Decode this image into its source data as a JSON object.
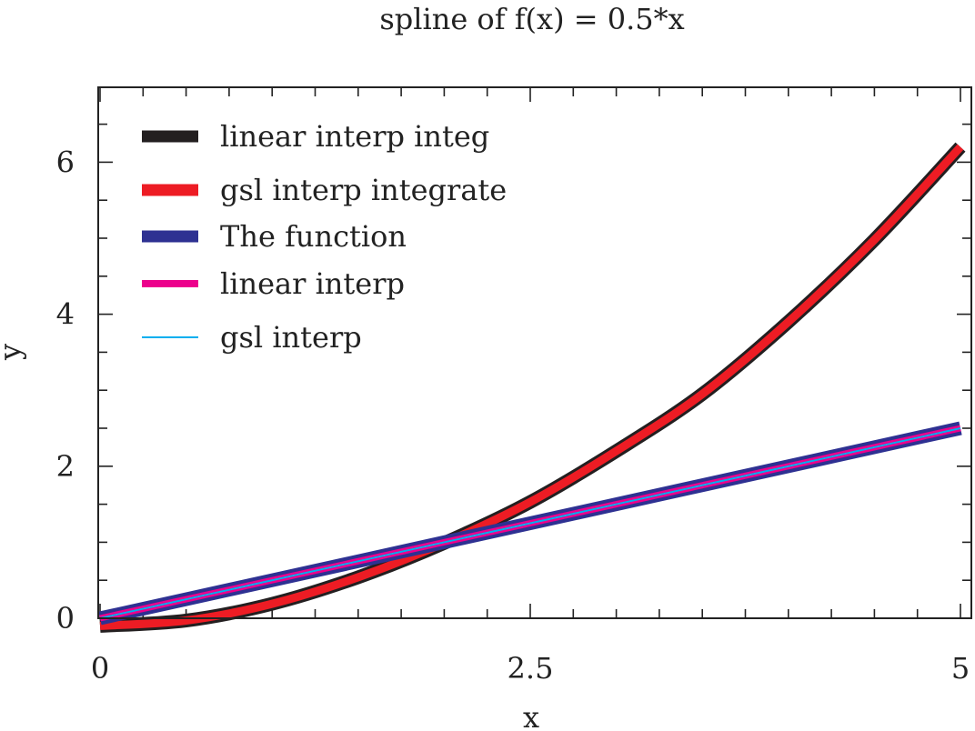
{
  "chart_data": {
    "type": "line",
    "title": "spline of f(x) = 0.5*x",
    "xlabel": "x",
    "ylabel": "y",
    "xlim": [
      0,
      5
    ],
    "ylim": [
      0,
      7
    ],
    "xticks": [
      0,
      2.5,
      5
    ],
    "xtick_labels": [
      "0",
      "2.5",
      "5"
    ],
    "yticks": [
      0,
      2,
      4,
      6
    ],
    "ytick_labels": [
      "0",
      "2",
      "4",
      "6"
    ],
    "grid": false,
    "legend_position": "top-left",
    "series": [
      {
        "name": "linear interp integ",
        "color": "#231f20",
        "x": [
          0,
          0.5,
          1,
          1.5,
          2,
          2.5,
          3,
          3.5,
          4,
          4.5,
          5
        ],
        "y": [
          -0.1,
          -0.03,
          0.19,
          0.54,
          0.99,
          1.53,
          2.2,
          2.95,
          3.9,
          4.98,
          6.2
        ]
      },
      {
        "name": "gsl interp integrate",
        "color": "#ed1c24",
        "x": [
          0,
          0.5,
          1,
          1.5,
          2,
          2.5,
          3,
          3.5,
          4,
          4.5,
          5
        ],
        "y": [
          -0.1,
          -0.03,
          0.19,
          0.54,
          0.99,
          1.53,
          2.2,
          2.95,
          3.9,
          4.98,
          6.2
        ]
      },
      {
        "name": "The function",
        "color": "#2e3192",
        "x": [
          0,
          5
        ],
        "y": [
          0,
          2.5
        ]
      },
      {
        "name": "linear interp",
        "color": "#ec008c",
        "x": [
          0,
          5
        ],
        "y": [
          0,
          2.5
        ]
      },
      {
        "name": "gsl interp",
        "color": "#00aeef",
        "x": [
          0,
          5
        ],
        "y": [
          0,
          2.5
        ]
      }
    ]
  }
}
